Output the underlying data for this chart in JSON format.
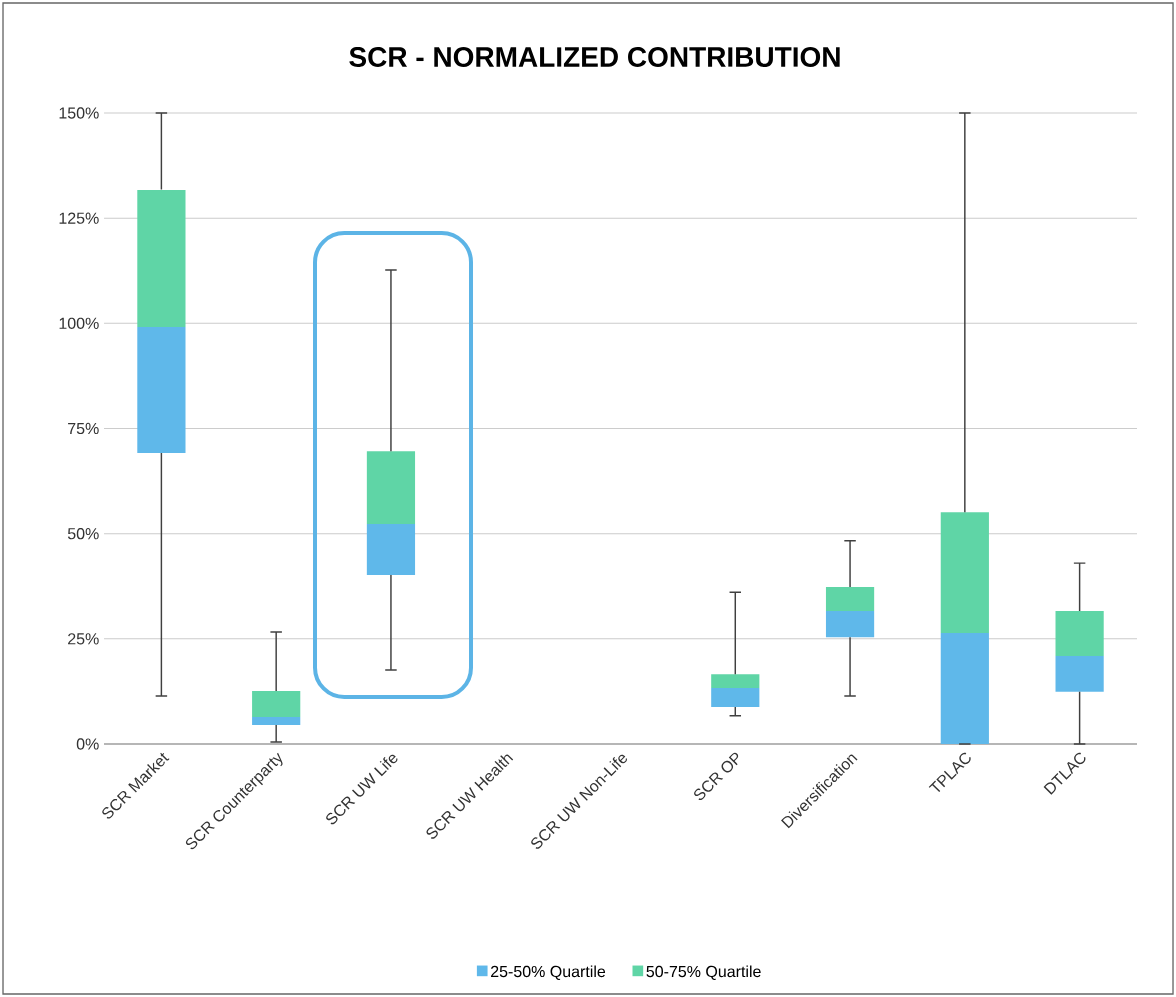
{
  "chart_data": {
    "type": "bar",
    "title": "SCR - NORMALIZED CONTRIBUTION",
    "categories": [
      "SCR Market",
      "SCR Counterparty",
      "SCR UW Life",
      "SCR UW Health",
      "SCR UW Non-Life",
      "SCR OP",
      "Diversification",
      "TPLAC",
      "DTLAC"
    ],
    "stacked": true,
    "series": [
      {
        "name": "25-50% Quartile",
        "color": "#5fb8ea",
        "base": [
          69.2,
          4.5,
          40.2,
          null,
          null,
          8.8,
          25.4,
          0,
          12.4
        ],
        "values": [
          29.9,
          1.9,
          12.1,
          null,
          null,
          4.5,
          6.2,
          26.4,
          8.5
        ],
        "errors": [
          [
            11.4,
            69.2
          ],
          [
            0.5,
            4.5
          ],
          [
            17.6,
            40.2
          ],
          null,
          null,
          [
            6.7,
            8.8
          ],
          [
            11.4,
            25.4
          ],
          [
            0,
            0
          ],
          [
            0,
            12.4
          ]
        ]
      },
      {
        "name": "50-75% Quartile",
        "color": "#5fd5a6",
        "values": [
          32.6,
          6.2,
          17.3,
          null,
          null,
          3.3,
          5.7,
          28.7,
          10.7
        ],
        "errors": [
          [
            131.8,
            150
          ],
          [
            12.6,
            26.6
          ],
          [
            69.6,
            112.7
          ],
          null,
          null,
          [
            16.6,
            36.1
          ],
          [
            37.3,
            48.3
          ],
          [
            55.1,
            150
          ],
          [
            31.6,
            43
          ]
        ]
      }
    ],
    "ylim": [
      0,
      150
    ],
    "yticks": [
      {
        "value": 0,
        "label": "0%"
      },
      {
        "value": 25,
        "label": "25%"
      },
      {
        "value": 50,
        "label": "50%"
      },
      {
        "value": 75,
        "label": "75%"
      },
      {
        "value": 100,
        "label": "100%"
      },
      {
        "value": 125,
        "label": "125%"
      },
      {
        "value": 150,
        "label": "150%"
      }
    ],
    "grid": "y",
    "legend": "bottom"
  }
}
